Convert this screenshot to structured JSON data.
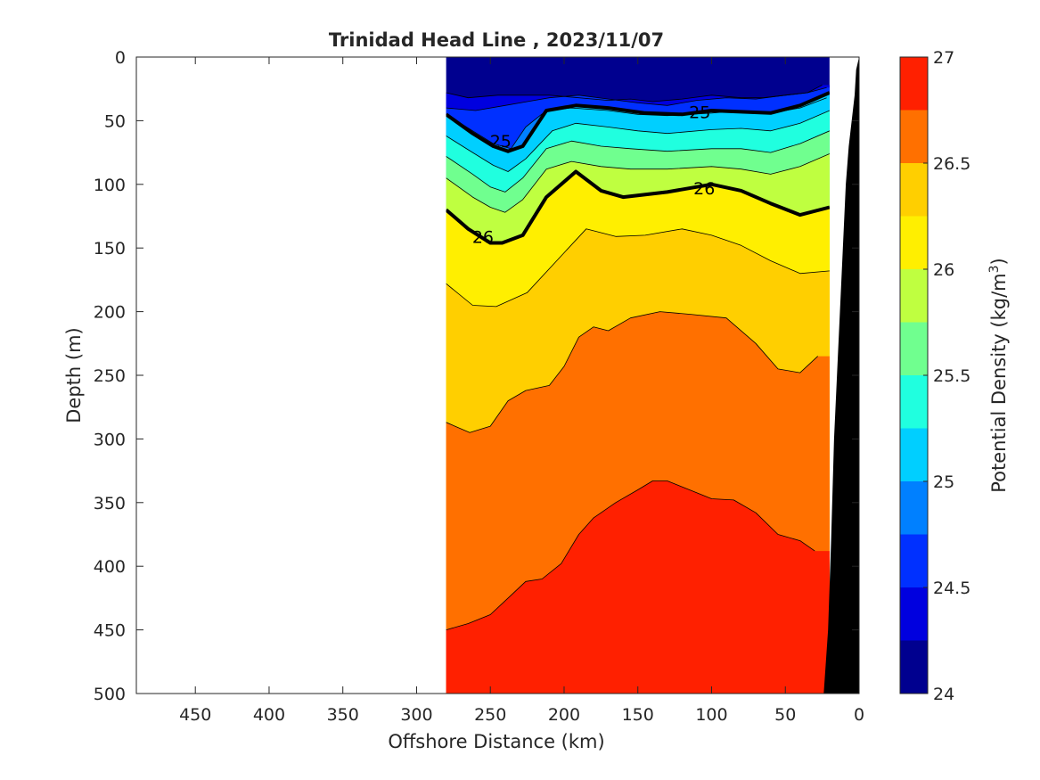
{
  "chart_data": {
    "type": "contourf",
    "title": "Trinidad Head Line , 2023/11/07",
    "xlabel": "Offshore Distance (km)",
    "ylabel": "Depth (m)",
    "xlim": [
      490,
      0
    ],
    "ylim": [
      0,
      500
    ],
    "x_reversed": true,
    "y_reversed": true,
    "xticks": [
      "450",
      "400",
      "350",
      "300",
      "250",
      "200",
      "150",
      "100",
      "50",
      "0"
    ],
    "yticks": [
      "0",
      "50",
      "100",
      "150",
      "200",
      "250",
      "300",
      "350",
      "400",
      "450",
      "500"
    ],
    "colorbar": {
      "label": "Potential Density (kg/m",
      "label_sup": "3",
      "label_close": ")",
      "range": [
        24,
        27
      ],
      "ticks": [
        "24",
        "24.5",
        "25",
        "25.5",
        "26",
        "26.5",
        "27"
      ],
      "levels": [
        24,
        24.25,
        24.5,
        24.75,
        25,
        25.25,
        25.5,
        25.75,
        26,
        26.25,
        26.5,
        26.75,
        27
      ],
      "colors": [
        "#00008f",
        "#0000df",
        "#0030ff",
        "#0080ff",
        "#00cfff",
        "#20ffdf",
        "#70ff8f",
        "#bfff40",
        "#ffef00",
        "#ffcf00",
        "#ff7000",
        "#ff2000",
        "#cf0000"
      ]
    },
    "data_extent_km": [
      280,
      20
    ],
    "contour_lines": [
      {
        "level": 24.25,
        "x": [
          280,
          265,
          245,
          228,
          210,
          190,
          170,
          155,
          140,
          120,
          100,
          80,
          65,
          50,
          35,
          25
        ],
        "depth": [
          28,
          32,
          30,
          30,
          30,
          32,
          34,
          33,
          35,
          33,
          30,
          32,
          32,
          30,
          28,
          22
        ]
      },
      {
        "level": 24.5,
        "x": [
          280,
          260,
          240,
          225,
          210,
          190,
          170,
          150,
          130,
          110,
          90,
          70,
          50,
          35,
          22
        ],
        "depth": [
          40,
          42,
          38,
          35,
          32,
          30,
          33,
          36,
          38,
          34,
          32,
          33,
          30,
          28,
          24
        ]
      },
      {
        "level": 24.75,
        "x": [
          280,
          262,
          248,
          236,
          226,
          212,
          195,
          170,
          150,
          130,
          100,
          80,
          60,
          40,
          22
        ],
        "depth": [
          45,
          58,
          68,
          72,
          55,
          42,
          40,
          42,
          45,
          46,
          44,
          42,
          44,
          40,
          32
        ]
      },
      {
        "level": 25,
        "x": [
          280,
          262,
          248,
          238,
          228,
          212,
          192,
          170,
          145,
          120,
          100,
          80,
          60,
          40,
          20
        ],
        "depth": [
          45,
          60,
          70,
          74,
          70,
          42,
          38,
          40,
          44,
          45,
          42,
          43,
          44,
          38,
          28
        ]
      },
      {
        "level": 25.25,
        "x": [
          280,
          262,
          248,
          238,
          226,
          208,
          192,
          170,
          150,
          130,
          100,
          80,
          60,
          40,
          20
        ],
        "depth": [
          62,
          75,
          85,
          90,
          80,
          58,
          52,
          55,
          58,
          60,
          57,
          56,
          58,
          52,
          42
        ]
      },
      {
        "level": 25.5,
        "x": [
          280,
          262,
          250,
          240,
          228,
          212,
          195,
          175,
          155,
          130,
          100,
          80,
          60,
          40,
          20
        ],
        "depth": [
          78,
          92,
          102,
          106,
          95,
          72,
          66,
          70,
          72,
          74,
          72,
          72,
          75,
          68,
          58
        ]
      },
      {
        "level": 25.75,
        "x": [
          280,
          262,
          250,
          240,
          228,
          212,
          195,
          175,
          155,
          130,
          100,
          80,
          60,
          40,
          20
        ],
        "depth": [
          95,
          110,
          118,
          122,
          112,
          88,
          82,
          86,
          88,
          88,
          86,
          88,
          92,
          86,
          76
        ]
      },
      {
        "level": 26,
        "x": [
          280,
          265,
          250,
          242,
          228,
          212,
          192,
          175,
          160,
          130,
          100,
          80,
          60,
          40,
          20
        ],
        "depth": [
          120,
          135,
          146,
          146,
          140,
          110,
          90,
          105,
          110,
          106,
          100,
          105,
          115,
          124,
          118
        ]
      },
      {
        "level": 26.25,
        "x": [
          280,
          262,
          246,
          225,
          205,
          185,
          165,
          145,
          120,
          100,
          80,
          60,
          40,
          20
        ],
        "depth": [
          178,
          195,
          196,
          185,
          160,
          135,
          141,
          140,
          135,
          140,
          148,
          160,
          170,
          168
        ]
      },
      {
        "level": 26.5,
        "x": [
          280,
          264,
          250,
          238,
          226,
          210,
          200,
          190,
          180,
          170,
          155,
          135,
          115,
          90,
          70,
          55,
          40,
          28
        ],
        "depth": [
          287,
          295,
          290,
          270,
          262,
          258,
          243,
          220,
          212,
          215,
          205,
          200,
          202,
          205,
          225,
          245,
          248,
          235
        ]
      },
      {
        "level": 26.75,
        "x": [
          280,
          265,
          250,
          238,
          226,
          215,
          202,
          190,
          180,
          165,
          150,
          140,
          130,
          115,
          100,
          85,
          70,
          55,
          40,
          30
        ],
        "depth": [
          450,
          445,
          438,
          425,
          412,
          410,
          398,
          375,
          362,
          350,
          340,
          333,
          333,
          340,
          347,
          348,
          358,
          375,
          380,
          388
        ]
      }
    ],
    "labeled_contours": [
      {
        "level": "25",
        "labels": [
          {
            "x": 243,
            "depth": 66
          },
          {
            "x": 108,
            "depth": 43
          }
        ]
      },
      {
        "level": "26",
        "labels": [
          {
            "x": 255,
            "depth": 141
          },
          {
            "x": 105,
            "depth": 103
          }
        ]
      }
    ],
    "bathymetry": {
      "x": [
        24,
        21,
        19,
        17,
        15,
        13,
        11,
        9,
        7,
        5,
        3,
        2,
        0
      ],
      "depth": [
        500,
        450,
        380,
        300,
        250,
        200,
        150,
        100,
        70,
        50,
        30,
        10,
        0
      ]
    }
  }
}
